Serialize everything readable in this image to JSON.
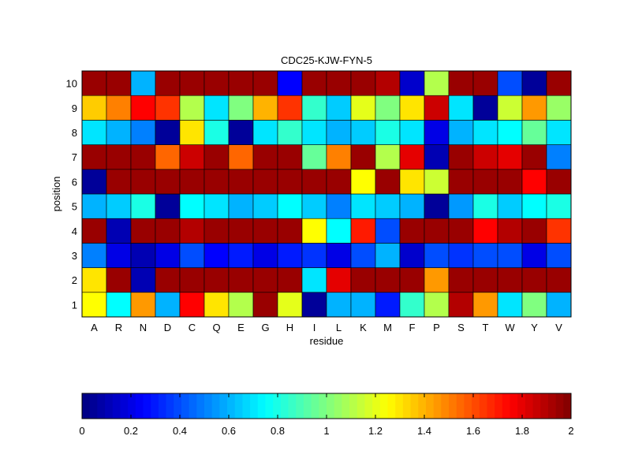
{
  "chart_data": {
    "type": "heatmap",
    "title": "CDC25-KJW-FYN-5",
    "xlabel": "residue",
    "ylabel": "position",
    "x_categories": [
      "A",
      "R",
      "N",
      "D",
      "C",
      "Q",
      "E",
      "G",
      "H",
      "I",
      "L",
      "K",
      "M",
      "F",
      "P",
      "S",
      "T",
      "W",
      "Y",
      "V"
    ],
    "y_categories": [
      "1",
      "2",
      "3",
      "4",
      "5",
      "6",
      "7",
      "8",
      "9",
      "10"
    ],
    "colormap": "jet",
    "clim": [
      0,
      2
    ],
    "grid": false,
    "colorbar": {
      "placement": "bottom",
      "ticks": [
        0,
        0.2,
        0.4,
        0.6,
        0.8,
        1,
        1.2,
        1.4,
        1.6,
        1.8,
        2
      ],
      "tick_labels": [
        "0",
        "0.2",
        "0.4",
        "0.6",
        "0.8",
        "1",
        "1.2",
        "1.4",
        "1.6",
        "1.8",
        "2"
      ]
    },
    "values": [
      [
        1.25,
        0.75,
        1.45,
        0.6,
        1.75,
        1.3,
        1.1,
        1.95,
        1.2,
        0.05,
        0.6,
        0.6,
        0.3,
        0.85,
        1.1,
        1.9,
        1.45,
        0.7,
        1.0,
        0.6
      ],
      [
        1.3,
        1.95,
        0.1,
        1.95,
        1.95,
        1.95,
        1.95,
        1.95,
        1.95,
        0.7,
        1.8,
        1.95,
        1.95,
        1.95,
        1.45,
        1.95,
        1.95,
        1.95,
        1.95,
        1.95
      ],
      [
        0.5,
        0.2,
        0.1,
        0.2,
        0.4,
        0.25,
        0.3,
        0.2,
        0.3,
        0.35,
        0.2,
        0.4,
        0.6,
        0.15,
        0.4,
        0.35,
        0.4,
        0.4,
        0.2,
        0.4
      ],
      [
        1.95,
        0.1,
        1.95,
        1.95,
        1.9,
        1.95,
        1.95,
        1.95,
        1.95,
        1.25,
        0.75,
        1.7,
        0.4,
        1.95,
        1.95,
        1.95,
        1.75,
        1.9,
        1.95,
        1.65
      ],
      [
        0.6,
        0.65,
        0.8,
        0.05,
        0.75,
        0.7,
        0.6,
        0.65,
        0.75,
        0.65,
        0.5,
        0.7,
        0.65,
        0.6,
        0.05,
        0.55,
        0.8,
        0.65,
        0.75,
        0.8
      ],
      [
        0.05,
        1.95,
        1.95,
        1.95,
        1.95,
        1.95,
        1.95,
        1.95,
        1.95,
        1.95,
        1.95,
        1.25,
        1.95,
        1.3,
        1.15,
        1.95,
        1.95,
        1.95,
        1.75,
        1.95
      ],
      [
        1.95,
        1.95,
        1.95,
        1.55,
        1.85,
        1.95,
        1.55,
        1.95,
        1.95,
        0.95,
        1.5,
        1.95,
        1.1,
        1.8,
        0.1,
        1.95,
        1.85,
        1.8,
        1.95,
        0.5
      ],
      [
        0.7,
        0.6,
        0.5,
        0.05,
        1.3,
        0.8,
        0.05,
        0.7,
        0.85,
        0.7,
        0.6,
        0.65,
        0.8,
        0.7,
        0.2,
        0.6,
        0.7,
        0.75,
        0.95,
        0.7
      ],
      [
        1.35,
        1.5,
        1.75,
        1.65,
        1.1,
        0.7,
        1.0,
        1.4,
        1.65,
        0.85,
        0.65,
        1.2,
        1.0,
        1.3,
        1.85,
        0.7,
        0.05,
        1.15,
        1.45,
        1.05
      ],
      [
        1.95,
        1.95,
        0.6,
        1.95,
        1.95,
        1.95,
        1.95,
        1.95,
        0.25,
        1.95,
        1.95,
        1.95,
        1.9,
        0.15,
        1.1,
        1.95,
        1.95,
        0.4,
        0.05,
        1.95
      ]
    ]
  }
}
